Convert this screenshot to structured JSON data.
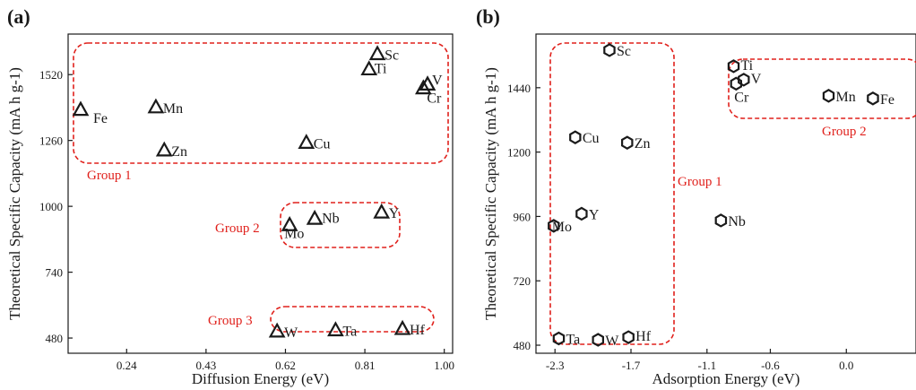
{
  "chart_data": [
    {
      "type": "scatter",
      "panel": "(a)",
      "xlabel": "Diffusion Energy (eV)",
      "ylabel": "Theoretical Specific Capacity (mA h g-1)",
      "xticks": [
        "0.24",
        "0.43",
        "0.62",
        "0.81",
        "1.00"
      ],
      "yticks": [
        "480",
        "740",
        "1000",
        "1260",
        "1520"
      ],
      "xlim": [
        0.1,
        1.02
      ],
      "ylim": [
        420,
        1680
      ],
      "marker": "triangle",
      "grid": false,
      "points": [
        {
          "label": "Fe",
          "x": 0.13,
          "y": 1380
        },
        {
          "label": "Mn",
          "x": 0.31,
          "y": 1390
        },
        {
          "label": "Zn",
          "x": 0.33,
          "y": 1220
        },
        {
          "label": "Cu",
          "x": 0.67,
          "y": 1250
        },
        {
          "label": "Sc",
          "x": 0.84,
          "y": 1600
        },
        {
          "label": "Ti",
          "x": 0.82,
          "y": 1540
        },
        {
          "label": "V",
          "x": 0.96,
          "y": 1480
        },
        {
          "label": "Cr",
          "x": 0.95,
          "y": 1465
        },
        {
          "label": "Y",
          "x": 0.85,
          "y": 975
        },
        {
          "label": "Nb",
          "x": 0.69,
          "y": 950
        },
        {
          "label": "Mo",
          "x": 0.63,
          "y": 925
        },
        {
          "label": "W",
          "x": 0.6,
          "y": 505
        },
        {
          "label": "Ta",
          "x": 0.74,
          "y": 510
        },
        {
          "label": "Hf",
          "x": 0.9,
          "y": 515
        }
      ],
      "groups": [
        {
          "label": "Group 1"
        },
        {
          "label": "Group 2"
        },
        {
          "label": "Group 3"
        }
      ]
    },
    {
      "type": "scatter",
      "panel": "(b)",
      "xlabel": "Adsorption Energy (eV)",
      "ylabel": "Theoretical Specific Capacity (mA h g-1)",
      "xticks": [
        "-2.3",
        "-1.7",
        "-1.1",
        "-0.6",
        "0.0"
      ],
      "yticks": [
        "480",
        "720",
        "960",
        "1200",
        "1440"
      ],
      "xlim": [
        -2.45,
        0.55
      ],
      "ylim": [
        450,
        1640
      ],
      "marker": "hexagon",
      "grid": false,
      "points": [
        {
          "label": "Sc",
          "x": -1.87,
          "y": 1580
        },
        {
          "label": "Cu",
          "x": -2.14,
          "y": 1255
        },
        {
          "label": "Zn",
          "x": -1.73,
          "y": 1235
        },
        {
          "label": "Y",
          "x": -2.09,
          "y": 970
        },
        {
          "label": "Mo",
          "x": -2.31,
          "y": 925
        },
        {
          "label": "Ta",
          "x": -2.27,
          "y": 505
        },
        {
          "label": "W",
          "x": -1.96,
          "y": 500
        },
        {
          "label": "Hf",
          "x": -1.72,
          "y": 510
        },
        {
          "label": "Ti",
          "x": -0.89,
          "y": 1520
        },
        {
          "label": "V",
          "x": -0.81,
          "y": 1470
        },
        {
          "label": "Cr",
          "x": -0.87,
          "y": 1455
        },
        {
          "label": "Mn",
          "x": -0.14,
          "y": 1410
        },
        {
          "label": "Fe",
          "x": 0.21,
          "y": 1400
        },
        {
          "label": "Nb",
          "x": -0.99,
          "y": 945
        }
      ],
      "groups": [
        {
          "label": "Group 1"
        },
        {
          "label": "Group 2"
        }
      ]
    }
  ]
}
